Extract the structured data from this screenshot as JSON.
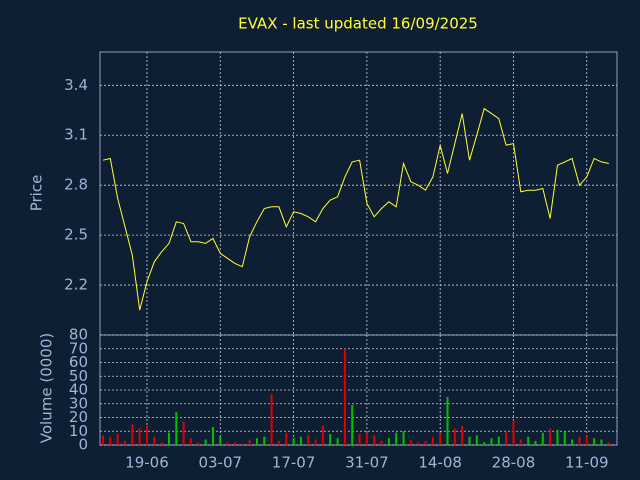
{
  "chart_data": [
    {
      "type": "line",
      "title": "EVAX - last updated 16/09/2025",
      "y_label": "Price",
      "color": "#ffff33",
      "values": [
        2.95,
        2.96,
        2.72,
        2.55,
        2.38,
        2.05,
        2.22,
        2.34,
        2.4,
        2.45,
        2.58,
        2.57,
        2.46,
        2.46,
        2.45,
        2.48,
        2.39,
        2.36,
        2.33,
        2.31,
        2.49,
        2.58,
        2.66,
        2.67,
        2.67,
        2.55,
        2.64,
        2.63,
        2.61,
        2.58,
        2.66,
        2.71,
        2.73,
        2.85,
        2.94,
        2.95,
        2.69,
        2.61,
        2.66,
        2.7,
        2.67,
        2.93,
        2.82,
        2.8,
        2.77,
        2.85,
        3.04,
        2.87,
        3.05,
        3.23,
        2.95,
        3.1,
        3.26,
        3.23,
        3.2,
        3.04,
        3.05,
        2.76,
        2.77,
        2.77,
        2.78,
        2.6,
        2.92,
        2.94,
        2.96,
        2.8,
        2.85,
        2.96,
        2.94,
        2.93
      ],
      "ylim": [
        1.9,
        3.6
      ],
      "yticks": [
        2.2,
        2.5,
        2.8,
        3.1,
        3.4
      ],
      "grid": true
    },
    {
      "type": "bar",
      "y_label": "Volume (0000)",
      "categories": [
        null,
        null,
        null,
        null,
        null,
        null,
        "19-06",
        null,
        null,
        null,
        null,
        null,
        null,
        null,
        null,
        null,
        "03-07",
        null,
        null,
        null,
        null,
        null,
        null,
        null,
        null,
        null,
        "17-07",
        null,
        null,
        null,
        null,
        null,
        null,
        null,
        null,
        null,
        "31-07",
        null,
        null,
        null,
        null,
        null,
        null,
        null,
        null,
        null,
        "14-08",
        null,
        null,
        null,
        null,
        null,
        null,
        null,
        null,
        null,
        "28-08",
        null,
        null,
        null,
        null,
        null,
        null,
        null,
        null,
        null,
        "11-09",
        null,
        null,
        null
      ],
      "values": [
        7,
        6,
        8,
        3,
        15,
        12,
        14,
        6,
        2,
        9,
        24,
        17,
        5,
        2,
        4,
        13,
        6,
        2,
        2,
        1,
        4,
        5,
        6,
        37,
        3,
        9,
        5,
        6,
        7,
        4,
        14,
        8,
        5,
        70,
        29,
        8,
        9,
        7,
        3,
        5,
        9,
        10,
        4,
        2,
        3,
        6,
        9,
        35,
        12,
        14,
        6,
        7,
        2,
        5,
        6,
        10,
        18,
        4,
        6,
        3,
        9,
        12,
        11,
        10,
        4,
        6,
        7,
        5,
        4,
        2
      ],
      "colors": [
        "#e00000",
        "#e00000",
        "#e00000",
        "#e00000",
        "#e00000",
        "#e00000",
        "#e00000",
        "#e00000",
        "#e00000",
        "#00c000",
        "#00c000",
        "#e00000",
        "#e00000",
        "#e00000",
        "#00c000",
        "#00c000",
        "#00c000",
        "#e00000",
        "#e00000",
        "#e00000",
        "#e00000",
        "#00c000",
        "#00c000",
        "#e00000",
        "#e00000",
        "#e00000",
        "#00c000",
        "#00c000",
        "#e00000",
        "#e00000",
        "#e00000",
        "#00c000",
        "#00c000",
        "#e00000",
        "#00c000",
        "#e00000",
        "#e00000",
        "#e00000",
        "#e00000",
        "#00c000",
        "#00c000",
        "#00c000",
        "#e00000",
        "#e00000",
        "#e00000",
        "#e00000",
        "#e00000",
        "#00c000",
        "#e00000",
        "#e00000",
        "#00c000",
        "#00c000",
        "#00c000",
        "#00c000",
        "#00c000",
        "#e00000",
        "#e00000",
        "#e00000",
        "#00c000",
        "#00c000",
        "#00c000",
        "#e00000",
        "#00c000",
        "#00c000",
        "#00c000",
        "#e00000",
        "#e00000",
        "#00c000",
        "#00c000",
        "#e00000"
      ],
      "ylim": [
        0,
        80
      ],
      "yticks": [
        0,
        10,
        20,
        30,
        40,
        50,
        60,
        70,
        80
      ],
      "grid": true
    }
  ]
}
